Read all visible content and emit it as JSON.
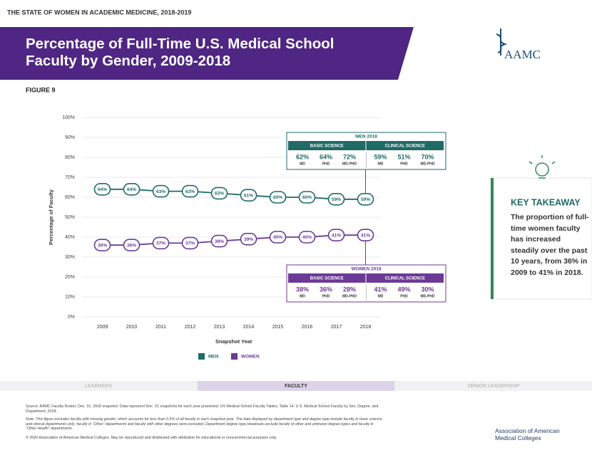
{
  "header": "THE STATE OF WOMEN IN ACADEMIC MEDICINE, 2018-2019",
  "logo": "AAMC",
  "figure_label": "FIGURE 9",
  "chart_data": {
    "type": "line",
    "title": "Percentage of Full-Time U.S. Medical School Faculty by Gender, 2009-2018",
    "x_label": "Snapshot Year",
    "y_label": "Percentage of Faculty",
    "categories": [
      "2009",
      "2010",
      "2011",
      "2012",
      "2013",
      "2014",
      "2015",
      "2016",
      "2017",
      "2018"
    ],
    "ylim": [
      0,
      100
    ],
    "yticks": [
      {
        "value": 0,
        "label": "0%"
      },
      {
        "value": 10,
        "label": "10%"
      },
      {
        "value": 20,
        "label": "20%"
      },
      {
        "value": 30,
        "label": "30%"
      },
      {
        "value": 40,
        "label": "40%"
      },
      {
        "value": 50,
        "label": "50%"
      },
      {
        "value": 60,
        "label": "60%"
      },
      {
        "value": 70,
        "label": "70%"
      },
      {
        "value": 80,
        "label": "80%"
      },
      {
        "value": 90,
        "label": "90%"
      },
      {
        "value": 100,
        "label": "100%"
      }
    ],
    "series": [
      {
        "name": "MEN",
        "color": "#1f6b66",
        "values": [
          64,
          64,
          63,
          63,
          62,
          61,
          60,
          60,
          59,
          59
        ],
        "value_labels": [
          "64%",
          "64%",
          "63%",
          "63%",
          "62%",
          "61%",
          "60%",
          "60%",
          "59%",
          "59%"
        ]
      },
      {
        "name": "WOMEN",
        "color": "#6b3a96",
        "values": [
          36,
          36,
          37,
          37,
          38,
          39,
          40,
          40,
          41,
          41
        ],
        "value_labels": [
          "36%",
          "36%",
          "37%",
          "37%",
          "38%",
          "39%",
          "40%",
          "40%",
          "41%",
          "41%"
        ]
      }
    ],
    "breakdowns": [
      {
        "title": "MEN 2018",
        "groups": [
          {
            "name": "BASIC SCIENCE",
            "items": [
              {
                "value": "62%",
                "degree": "MD"
              },
              {
                "value": "64%",
                "degree": "PHD"
              },
              {
                "value": "72%",
                "degree": "MD-PHD"
              }
            ]
          },
          {
            "name": "CLINICAL SCIENCE",
            "items": [
              {
                "value": "59%",
                "degree": "MD"
              },
              {
                "value": "51%",
                "degree": "PHD"
              },
              {
                "value": "70%",
                "degree": "MD-PHD"
              }
            ]
          }
        ]
      },
      {
        "title": "WOMEN 2018",
        "groups": [
          {
            "name": "BASIC SCIENCE",
            "items": [
              {
                "value": "38%",
                "degree": "MD"
              },
              {
                "value": "36%",
                "degree": "PHD"
              },
              {
                "value": "28%",
                "degree": "MD-PHD"
              }
            ]
          },
          {
            "name": "CLINICAL SCIENCE",
            "items": [
              {
                "value": "41%",
                "degree": "MD"
              },
              {
                "value": "49%",
                "degree": "PHD"
              },
              {
                "value": "30%",
                "degree": "MD-PHD"
              }
            ]
          }
        ]
      }
    ]
  },
  "takeaway": {
    "title": "KEY TAKEAWAY",
    "text": "The proportion of full-time women faculty has increased steadily over the past 10 years, from 36% in 2009 to 41% in 2018."
  },
  "nav": [
    "LEARNERS",
    "FACULTY",
    "SENIOR LEADERSHIP"
  ],
  "footer": {
    "source": "Source: AAMC Faculty Roster, Dec. 31, 2018 snapshot. Data represent Dec. 31 snapshots for each year presented. US Medical School Faculty Tables, Table 14. U.S. Medical School Faculty by Sex, Degree, and Department, 2018.",
    "note": "Note: This figure excludes faculty with missing gender, which accounts for less than 0.5% of all faculty in each snapshot year. The data displayed by department type and degree type include faculty in basic science and clinical departments only; faculty in “Other” departments and faculty with other degrees were excluded. Department degree type breakouts exclude faculty of other and unknown degree types and faculty in “Other Health” departments.",
    "copyright": "© 2020 Association of American Medical Colleges. May be reproduced and distributed with attribution for educational or noncommercial purposes only.",
    "org": "Association of American Medical Colleges"
  }
}
